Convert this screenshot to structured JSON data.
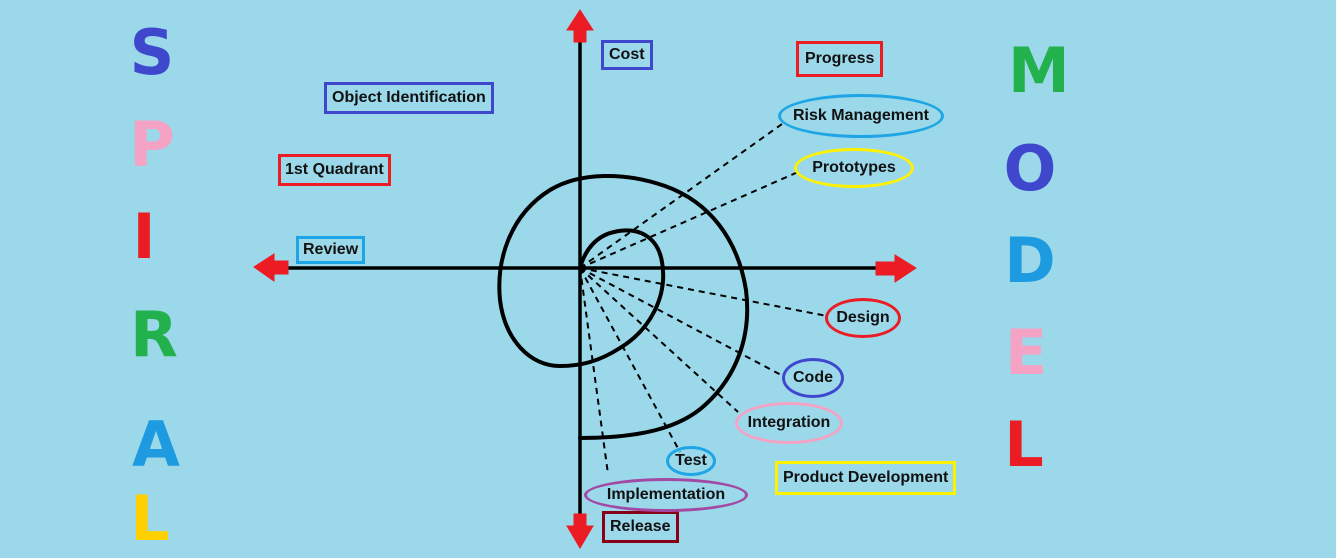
{
  "title_left": {
    "letters": [
      "S",
      "P",
      "I",
      "R",
      "A",
      "L"
    ],
    "colors": [
      "#3f48cc",
      "#f5a3c4",
      "#ec1c24",
      "#22b14c",
      "#1e9be0",
      "#ffd000"
    ]
  },
  "title_right": {
    "letters": [
      "M",
      "O",
      "D",
      "E",
      "L"
    ],
    "colors": [
      "#22b14c",
      "#3f48cc",
      "#1e9be0",
      "#f5a3c4",
      "#ec1c24"
    ]
  },
  "labels": {
    "cost": "Cost",
    "progress": "Progress",
    "object_identification": "Object Identification",
    "first_quadrant": "1st Quadrant",
    "review": "Review",
    "product_development": "Product Development",
    "release": "Release"
  },
  "phases": {
    "risk_management": "Risk Management",
    "prototypes": "Prototypes",
    "design": "Design",
    "code": "Code",
    "integration": "Integration",
    "test": "Test",
    "implementation": "Implementation"
  },
  "colors": {
    "background": "#9ad8ea",
    "axis": "#000000",
    "arrow": "#ec1c24",
    "blue_box": "#3f48cc",
    "red_box": "#ec1c24",
    "cyan_box": "#1ea5e6",
    "yellow_box": "#fff200",
    "pink_oval": "#f5a3c4",
    "purple_oval": "#a349a4",
    "dark_red_box": "#880015"
  }
}
